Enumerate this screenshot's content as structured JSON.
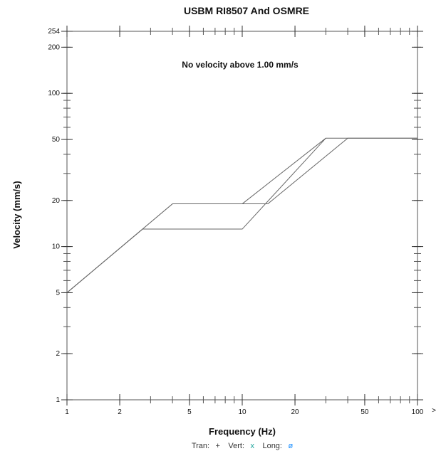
{
  "chart_data": {
    "type": "line",
    "title": "USBM RI8507 And OSMRE",
    "xlabel": "Frequency (Hz)",
    "ylabel": "Velocity (mm/s)",
    "x_scale": "log",
    "y_scale": "log",
    "xlim": [
      1,
      100
    ],
    "ylim": [
      1,
      254
    ],
    "x_ticks": [
      1,
      2,
      5,
      10,
      20,
      50,
      100
    ],
    "x_tick_labels": [
      "1",
      "2",
      "5",
      "10",
      "20",
      "50",
      "100"
    ],
    "x_overflow_marker": ">",
    "y_ticks": [
      1,
      2,
      5,
      10,
      20,
      50,
      100,
      200,
      254
    ],
    "y_tick_labels": [
      "1",
      "2",
      "5",
      "10",
      "20",
      "50",
      "100",
      "200",
      "254"
    ],
    "annotation": "No velocity above 1.00 mm/s",
    "legend": {
      "tran_label": "Tran:",
      "tran_marker": "+",
      "vert_label": "Vert:",
      "vert_marker": "x",
      "long_label": "Long:",
      "long_marker": "ø"
    },
    "series": [
      {
        "x": [
          1,
          2.7,
          10,
          30,
          100
        ],
        "y": [
          5,
          13,
          13,
          51,
          51
        ]
      },
      {
        "x": [
          1,
          4,
          10,
          14,
          40,
          100
        ],
        "y": [
          5,
          19,
          19,
          19,
          51,
          51
        ]
      },
      {
        "x": [
          10,
          30
        ],
        "y": [
          19,
          51
        ]
      }
    ],
    "grid": false,
    "legend_position": "bottom-center"
  }
}
